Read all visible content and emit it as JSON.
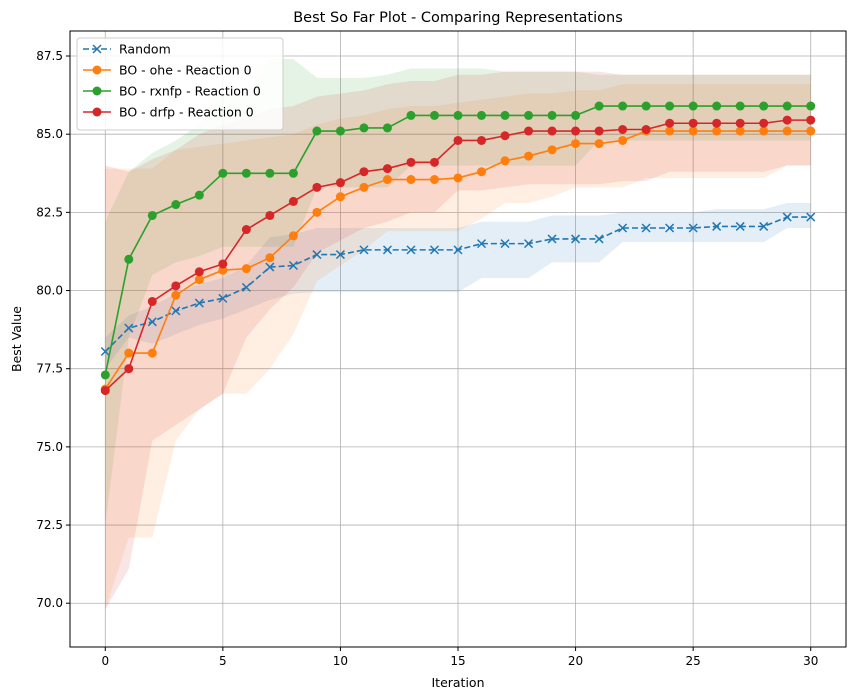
{
  "chart_data": {
    "type": "line",
    "title": "Best So Far Plot - Comparing Representations",
    "xlabel": "Iteration",
    "ylabel": "Best Value",
    "xlim": [
      -1.5,
      31.5
    ],
    "ylim": [
      68.6,
      88.3
    ],
    "xticks": [
      0,
      5,
      10,
      15,
      20,
      25,
      30
    ],
    "xtick_labels": [
      "0",
      "5",
      "10",
      "15",
      "20",
      "25",
      "30"
    ],
    "yticks": [
      70.0,
      72.5,
      75.0,
      77.5,
      80.0,
      82.5,
      85.0,
      87.5
    ],
    "ytick_labels": [
      "70.0",
      "72.5",
      "75.0",
      "77.5",
      "80.0",
      "82.5",
      "85.0",
      "87.5"
    ],
    "grid": true,
    "legend_position": "top-left",
    "x": [
      0,
      1,
      2,
      3,
      4,
      5,
      6,
      7,
      8,
      9,
      10,
      11,
      12,
      13,
      14,
      15,
      16,
      17,
      18,
      19,
      20,
      21,
      22,
      23,
      24,
      25,
      26,
      27,
      28,
      29,
      30
    ],
    "series": [
      {
        "name": "Random",
        "color": "#1f77b4",
        "linestyle": "dashed",
        "marker": "x",
        "values": [
          78.05,
          78.8,
          79.0,
          79.35,
          79.6,
          79.75,
          80.1,
          80.75,
          80.8,
          81.15,
          81.15,
          81.3,
          81.3,
          81.3,
          81.3,
          81.3,
          81.5,
          81.5,
          81.5,
          81.65,
          81.65,
          81.65,
          82.0,
          82.0,
          82.0,
          82.0,
          82.05,
          82.05,
          82.05,
          82.35,
          82.35
        ],
        "band_lower": [
          77.5,
          78.5,
          78.3,
          78.6,
          78.9,
          79.1,
          79.4,
          79.7,
          79.9,
          79.95,
          79.95,
          79.95,
          79.95,
          79.95,
          79.95,
          79.95,
          80.4,
          80.4,
          80.4,
          80.9,
          80.9,
          80.9,
          81.55,
          81.55,
          81.55,
          81.55,
          81.55,
          81.55,
          81.55,
          82.0,
          82.0
        ],
        "band_upper": [
          78.5,
          79.2,
          79.5,
          79.9,
          80.2,
          80.4,
          80.8,
          81.7,
          81.8,
          82.0,
          82.0,
          82.0,
          82.0,
          82.0,
          82.0,
          82.0,
          82.2,
          82.2,
          82.2,
          82.4,
          82.4,
          82.4,
          82.5,
          82.5,
          82.5,
          82.5,
          82.6,
          82.6,
          82.6,
          82.8,
          82.8
        ]
      },
      {
        "name": "BO - ohe - Reaction 0",
        "color": "#ff7f0e",
        "linestyle": "solid",
        "marker": "o",
        "values": [
          76.85,
          78.0,
          78.0,
          79.85,
          80.35,
          80.65,
          80.7,
          81.05,
          81.75,
          82.5,
          83.0,
          83.3,
          83.55,
          83.55,
          83.55,
          83.6,
          83.8,
          84.15,
          84.3,
          84.5,
          84.7,
          84.7,
          84.8,
          85.1,
          85.1,
          85.1,
          85.1,
          85.1,
          85.1,
          85.1,
          85.1
        ],
        "band_lower": [
          69.8,
          72.1,
          72.1,
          75.2,
          76.2,
          76.7,
          76.7,
          77.5,
          78.6,
          80.3,
          80.8,
          81.3,
          81.9,
          81.9,
          81.9,
          81.9,
          82.3,
          82.8,
          82.8,
          83.0,
          83.3,
          83.3,
          83.3,
          83.6,
          83.6,
          83.6,
          83.6,
          83.6,
          83.6,
          84.0,
          84.0
        ],
        "band_upper": [
          83.9,
          83.9,
          83.9,
          84.5,
          84.6,
          84.7,
          84.8,
          84.9,
          85.0,
          85.3,
          85.5,
          85.6,
          85.8,
          85.9,
          85.9,
          86.0,
          86.1,
          86.2,
          86.3,
          86.3,
          86.4,
          86.4,
          86.6,
          86.6,
          86.6,
          86.6,
          86.6,
          86.6,
          86.6,
          86.6,
          86.6
        ]
      },
      {
        "name": "BO - rxnfp - Reaction 0",
        "color": "#2ca02c",
        "linestyle": "solid",
        "marker": "o",
        "values": [
          77.3,
          81.0,
          82.4,
          82.75,
          83.05,
          83.75,
          83.75,
          83.75,
          83.75,
          85.1,
          85.1,
          85.2,
          85.2,
          85.6,
          85.6,
          85.6,
          85.6,
          85.6,
          85.6,
          85.6,
          85.6,
          85.9,
          85.9,
          85.9,
          85.9,
          85.9,
          85.9,
          85.9,
          85.9,
          85.9,
          85.9
        ],
        "band_lower": [
          72.5,
          78.5,
          80.5,
          80.9,
          81.1,
          81.4,
          81.4,
          81.4,
          81.4,
          83.3,
          83.3,
          83.3,
          83.3,
          84.0,
          84.0,
          84.0,
          84.0,
          84.0,
          84.0,
          84.0,
          84.0,
          84.8,
          84.8,
          84.8,
          84.8,
          84.8,
          84.8,
          84.8,
          84.8,
          84.8,
          84.8
        ],
        "band_upper": [
          82.2,
          83.8,
          84.4,
          84.8,
          85.3,
          86.3,
          86.3,
          87.4,
          87.4,
          86.8,
          86.8,
          86.8,
          86.9,
          87.1,
          87.1,
          87.1,
          87.1,
          87.0,
          87.0,
          87.0,
          87.0,
          86.9,
          86.9,
          86.9,
          86.9,
          86.9,
          86.9,
          86.9,
          86.9,
          86.9,
          86.9
        ]
      },
      {
        "name": "BO - drfp - Reaction 0",
        "color": "#d62728",
        "linestyle": "solid",
        "marker": "o",
        "values": [
          76.8,
          77.5,
          79.65,
          80.15,
          80.6,
          80.85,
          81.95,
          82.4,
          82.85,
          83.3,
          83.45,
          83.8,
          83.9,
          84.1,
          84.1,
          84.8,
          84.8,
          84.95,
          85.1,
          85.1,
          85.1,
          85.1,
          85.15,
          85.15,
          85.35,
          85.35,
          85.35,
          85.35,
          85.35,
          85.45,
          85.45
        ],
        "band_lower": [
          69.8,
          71.1,
          75.2,
          75.7,
          76.2,
          76.7,
          78.5,
          79.4,
          80.1,
          81.2,
          81.6,
          82.0,
          82.2,
          82.5,
          82.5,
          83.2,
          83.2,
          83.3,
          83.4,
          83.4,
          83.4,
          83.4,
          83.5,
          83.5,
          83.8,
          83.8,
          83.8,
          83.8,
          83.8,
          84.0,
          84.0
        ],
        "band_upper": [
          84.0,
          83.8,
          84.2,
          84.5,
          85.0,
          85.3,
          85.5,
          85.8,
          85.9,
          86.2,
          86.3,
          86.4,
          86.6,
          86.7,
          86.7,
          86.9,
          86.9,
          87.0,
          87.0,
          87.0,
          87.0,
          87.0,
          86.9,
          86.9,
          86.9,
          86.9,
          86.9,
          86.9,
          86.9,
          86.9,
          86.9
        ]
      }
    ]
  }
}
